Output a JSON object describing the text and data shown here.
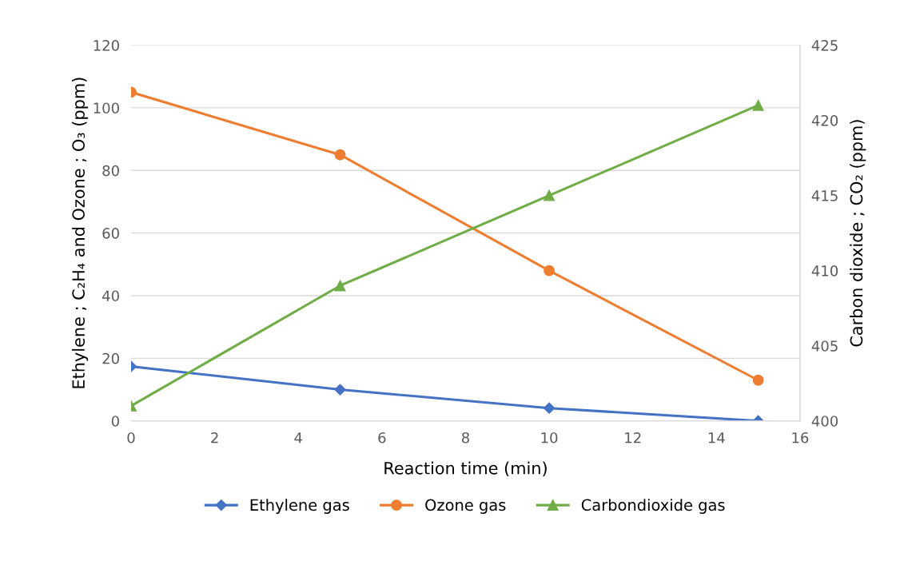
{
  "chart_data": {
    "type": "line",
    "xlabel": "Reaction time (min)",
    "ylabel": "Ethylene ; C₂H₄ and Ozone ; O₃ (ppm)",
    "y2label": "Carbon dioxide ; CO₂ (ppm)",
    "x": [
      0,
      5,
      10,
      15
    ],
    "series": [
      {
        "name": "Ethylene gas",
        "color": "#4472c4",
        "marker": "diamond",
        "values": [
          17.4,
          10,
          4.1,
          0
        ]
      },
      {
        "name": "Ozone gas",
        "color": "#ed7d31",
        "marker": "circle",
        "values": [
          105,
          85,
          48,
          13
        ]
      },
      {
        "name": "Carbondioxide gas",
        "color": "#70ad47",
        "marker": "triangle",
        "axis": "y2",
        "values": [
          401,
          409,
          415,
          421
        ]
      }
    ],
    "xlim": [
      0,
      16
    ],
    "xticks": [
      0,
      2,
      4,
      6,
      8,
      10,
      12,
      14,
      16
    ],
    "ylim": [
      0,
      120
    ],
    "yticks": [
      0,
      20,
      40,
      60,
      80,
      100,
      120
    ],
    "y2lim": [
      400,
      425
    ],
    "y2ticks": [
      400,
      405,
      410,
      415,
      420,
      425
    ],
    "grid": "y",
    "legend": "bottom",
    "line_style": "solid"
  }
}
